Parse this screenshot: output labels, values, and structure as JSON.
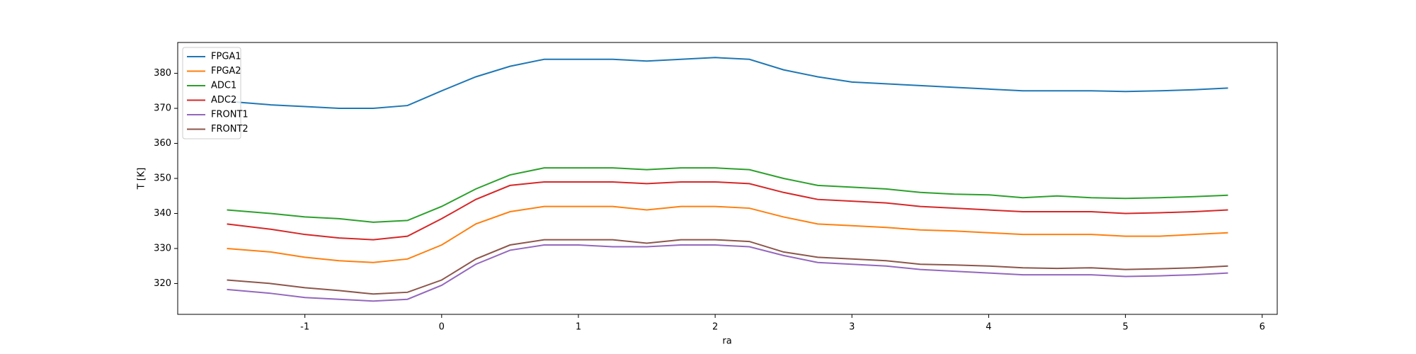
{
  "chart_data": {
    "type": "line",
    "x_label": "ra",
    "y_label": "T [K]",
    "x": [
      -1.57,
      -1.25,
      -1,
      -0.75,
      -0.5,
      -0.25,
      0,
      0.25,
      0.5,
      0.75,
      1,
      1.25,
      1.5,
      1.75,
      2,
      2.25,
      2.5,
      2.75,
      3,
      3.25,
      3.5,
      3.75,
      4,
      4.25,
      4.5,
      4.75,
      5,
      5.25,
      5.5,
      5.75
    ],
    "series": [
      {
        "name": "FPGA1",
        "color": "#1f77b4",
        "values": [
          372,
          371,
          370.5,
          370,
          370,
          370.8,
          375,
          379,
          382,
          384,
          384,
          384,
          383.5,
          384,
          384.5,
          384,
          381,
          379,
          377.5,
          377,
          376.5,
          376,
          375.5,
          375,
          375,
          375,
          374.8,
          375,
          375.3,
          375.8
        ]
      },
      {
        "name": "FPGA2",
        "color": "#ff7f0e",
        "values": [
          330,
          329,
          327.5,
          326.5,
          326,
          327,
          331,
          337,
          340.5,
          342,
          342,
          342,
          341,
          342,
          342,
          341.5,
          339,
          337,
          336.5,
          336,
          335.3,
          335,
          334.5,
          334,
          334,
          334,
          333.5,
          333.5,
          334,
          334.5
        ]
      },
      {
        "name": "ADC1",
        "color": "#2ca02c",
        "values": [
          341,
          340,
          339,
          338.5,
          337.5,
          338,
          342,
          347,
          351,
          353,
          353,
          353,
          352.5,
          353,
          353,
          352.5,
          350,
          348,
          347.5,
          347,
          346,
          345.5,
          345.3,
          344.5,
          345,
          344.5,
          344.3,
          344.5,
          344.8,
          345.2
        ]
      },
      {
        "name": "ADC2",
        "color": "#d62728",
        "values": [
          337,
          335.5,
          334,
          333,
          332.5,
          333.5,
          338.5,
          344,
          348,
          349,
          349,
          349,
          348.5,
          349,
          349,
          348.5,
          346,
          344,
          343.5,
          343,
          342,
          341.5,
          341,
          340.5,
          340.5,
          340.5,
          340,
          340.2,
          340.5,
          341
        ]
      },
      {
        "name": "FRONT1",
        "color": "#9467bd",
        "values": [
          318.3,
          317.2,
          316,
          315.5,
          315,
          315.5,
          319.5,
          325.5,
          329.5,
          331,
          331,
          330.5,
          330.5,
          331,
          331,
          330.5,
          328,
          326,
          325.5,
          325,
          324,
          323.5,
          323,
          322.5,
          322.5,
          322.5,
          322,
          322.2,
          322.5,
          323
        ]
      },
      {
        "name": "FRONT2",
        "color": "#8c564b",
        "values": [
          321,
          320,
          318.8,
          318,
          317,
          317.5,
          321,
          327,
          331,
          332.5,
          332.5,
          332.5,
          331.5,
          332.5,
          332.5,
          332,
          329,
          327.5,
          327,
          326.5,
          325.5,
          325.3,
          325,
          324.5,
          324.3,
          324.5,
          324,
          324.2,
          324.5,
          325
        ]
      }
    ],
    "xlim": [
      -1.93,
      6.11
    ],
    "ylim": [
      311.2,
      388.8
    ],
    "xticks": [
      -1,
      0,
      1,
      2,
      3,
      4,
      5,
      6
    ],
    "yticks": [
      320,
      330,
      340,
      350,
      360,
      370,
      380
    ],
    "legend": "upper left",
    "grid": false
  }
}
